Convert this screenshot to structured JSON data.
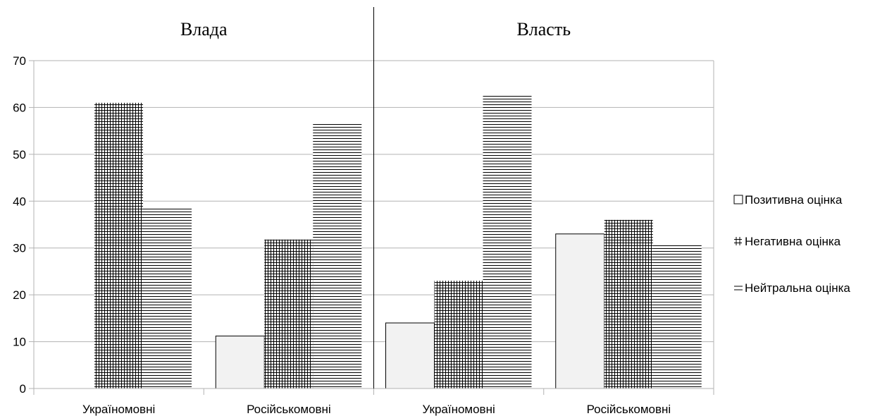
{
  "chart_data": {
    "type": "bar",
    "groups": [
      "Влада",
      "Власть"
    ],
    "categories": [
      "Україномовні",
      "Російськомовні",
      "Україномовні",
      "Російськомовні"
    ],
    "series": [
      {
        "name": "Позитивна оцінка",
        "pattern": "none",
        "values": [
          0,
          11.2,
          14,
          33
        ]
      },
      {
        "name": "Негативна оцінка",
        "pattern": "grid",
        "values": [
          61,
          31.8,
          23,
          36
        ]
      },
      {
        "name": "Нейтральна оцінка",
        "pattern": "horizontal",
        "values": [
          38.6,
          56.6,
          62.6,
          30.6
        ]
      }
    ],
    "yticks": [
      "0",
      "10",
      "20",
      "30",
      "40",
      "50",
      "60",
      "70"
    ],
    "ylim": [
      0,
      70
    ],
    "grid": true,
    "legend": "right",
    "colors": {
      "bar_fill": "#f2f2f2",
      "stroke": "#000000",
      "grid": "#b3b3b3"
    }
  }
}
